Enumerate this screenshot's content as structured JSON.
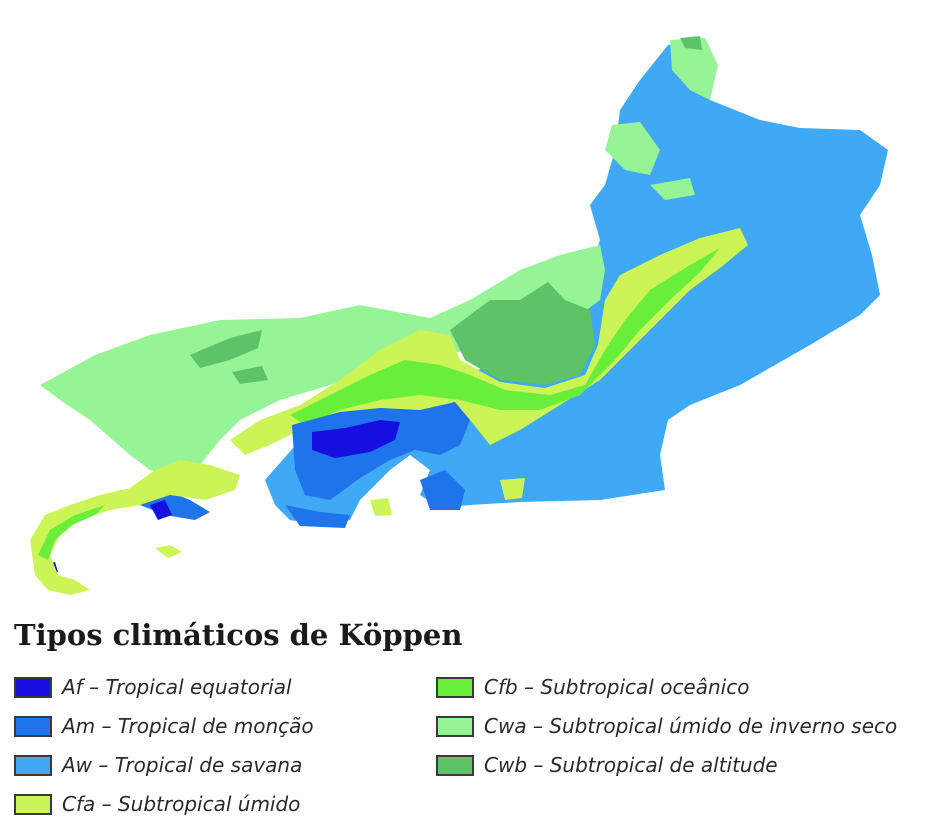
{
  "legend": {
    "title": "Tipos climáticos de Köppen",
    "items": [
      {
        "code": "af",
        "label": "Af – Tropical equatorial",
        "color": "#1510e0"
      },
      {
        "code": "am",
        "label": "Am – Tropical de monção",
        "color": "#1f74ec"
      },
      {
        "code": "aw",
        "label": "Aw – Tropical de savana",
        "color": "#3fa9f5"
      },
      {
        "code": "cfa",
        "label": "Cfa – Subtropical úmido",
        "color": "#cbf556"
      },
      {
        "code": "cfb",
        "label": "Cfb – Subtropical oceânico",
        "color": "#6aee3c"
      },
      {
        "code": "cwa",
        "label": "Cwa – Subtropical úmido de inverno seco",
        "color": "#97f496"
      },
      {
        "code": "cwb",
        "label": "Cwb – Subtropical de altitude",
        "color": "#5ec268"
      }
    ]
  }
}
